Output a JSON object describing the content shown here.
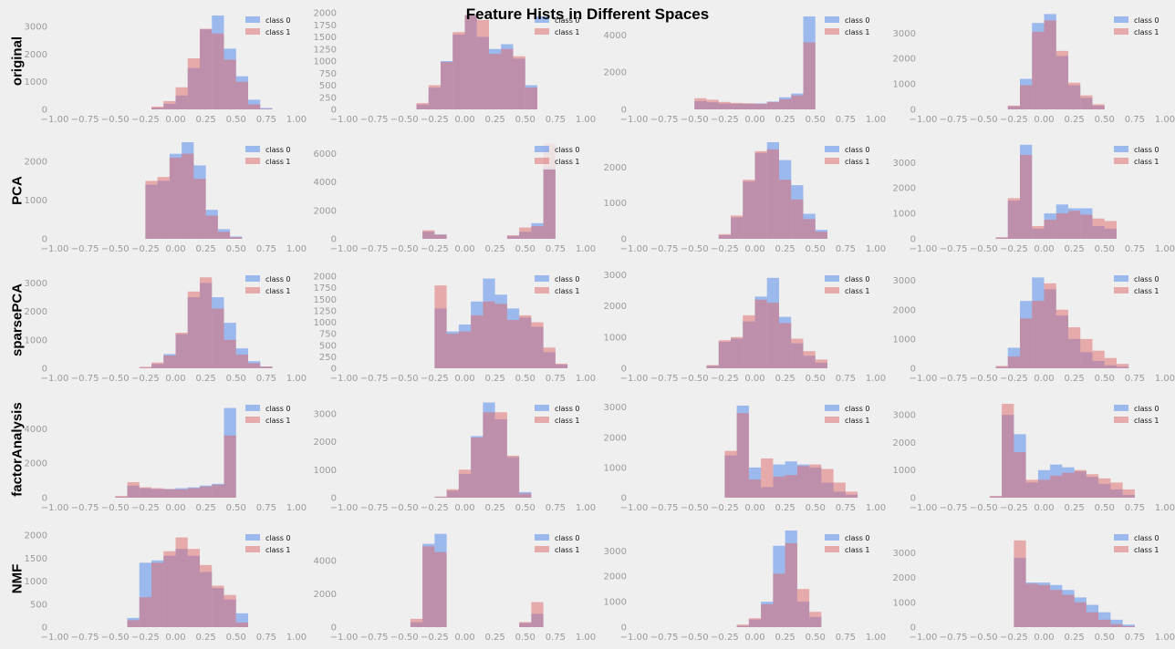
{
  "figure": {
    "title": "Feature Hists in Different Spaces",
    "rows": [
      "original",
      "PCA",
      "sparsePCA",
      "factorAnalysis",
      "NMF"
    ],
    "legend": [
      "class 0",
      "class 1"
    ],
    "colors": {
      "class0": "#6495ed",
      "class1": "#e06666",
      "overlap": "#b9819f",
      "background": "#efefef",
      "tick": "#9a9a9a"
    }
  },
  "chart_data": [
    {
      "type": "bar",
      "row": "original",
      "col": 1,
      "xlim": [
        -1.0,
        1.0
      ],
      "yticks": [
        0,
        1000,
        2000,
        3000
      ],
      "ylim": [
        0,
        3500
      ],
      "bin_edges": [
        -0.3,
        -0.2,
        -0.1,
        0,
        0.1,
        0.2,
        0.3,
        0.4,
        0.5,
        0.6,
        0.7,
        0.8
      ],
      "series": [
        {
          "name": "class 0",
          "values": [
            0,
            60,
            200,
            500,
            1500,
            2900,
            3400,
            2200,
            1200,
            350,
            50
          ]
        },
        {
          "name": "class 1",
          "values": [
            0,
            100,
            300,
            800,
            1850,
            2920,
            2750,
            1800,
            1000,
            180,
            20
          ]
        }
      ]
    },
    {
      "type": "bar",
      "row": "original",
      "col": 2,
      "xlim": [
        -1.0,
        1.0
      ],
      "yticks": [
        0,
        250,
        500,
        750,
        1000,
        1250,
        1500,
        1750,
        2000
      ],
      "ylim": [
        0,
        2000
      ],
      "bin_edges": [
        -0.4,
        -0.3,
        -0.2,
        -0.1,
        0,
        0.1,
        0.2,
        0.3,
        0.4,
        0.5,
        0.6
      ],
      "series": [
        {
          "name": "class 0",
          "values": [
            100,
            450,
            1000,
            1550,
            1950,
            1500,
            1250,
            1350,
            1050,
            500
          ]
        },
        {
          "name": "class 1",
          "values": [
            130,
            500,
            980,
            1600,
            1950,
            1850,
            1150,
            1250,
            1100,
            450
          ]
        }
      ]
    },
    {
      "type": "bar",
      "row": "original",
      "col": 3,
      "xlim": [
        -1.0,
        1.0
      ],
      "yticks": [
        0,
        2000,
        4000
      ],
      "ylim": [
        0,
        5200
      ],
      "bin_edges": [
        -0.5,
        -0.4,
        -0.3,
        -0.2,
        -0.1,
        0,
        0.1,
        0.2,
        0.3,
        0.4,
        0.5
      ],
      "series": [
        {
          "name": "class 0",
          "values": [
            450,
            380,
            320,
            300,
            300,
            320,
            420,
            650,
            850,
            5000
          ]
        },
        {
          "name": "class 1",
          "values": [
            600,
            520,
            400,
            350,
            330,
            300,
            400,
            550,
            750,
            3600
          ]
        }
      ]
    },
    {
      "type": "bar",
      "row": "original",
      "col": 4,
      "xlim": [
        -1.0,
        1.0
      ],
      "yticks": [
        0,
        1000,
        2000,
        3000
      ],
      "ylim": [
        0,
        3800
      ],
      "bin_edges": [
        -0.3,
        -0.2,
        -0.1,
        0,
        0.1,
        0.2,
        0.3,
        0.4,
        0.5
      ],
      "series": [
        {
          "name": "class 0",
          "values": [
            120,
            1200,
            3400,
            3750,
            2100,
            950,
            450,
            150
          ]
        },
        {
          "name": "class 1",
          "values": [
            150,
            950,
            3050,
            3500,
            2300,
            1050,
            550,
            200
          ]
        }
      ]
    },
    {
      "type": "bar",
      "row": "PCA",
      "col": 1,
      "xlim": [
        -1.0,
        1.0
      ],
      "yticks": [
        0,
        1000,
        2000
      ],
      "ylim": [
        0,
        2500
      ],
      "bin_edges": [
        -0.25,
        -0.15,
        -0.05,
        0.05,
        0.15,
        0.25,
        0.35,
        0.45,
        0.55
      ],
      "series": [
        {
          "name": "class 0",
          "values": [
            1400,
            1500,
            2200,
            2500,
            1900,
            750,
            250,
            60
          ]
        },
        {
          "name": "class 1",
          "values": [
            1500,
            1600,
            2100,
            2200,
            1550,
            600,
            180,
            40
          ]
        }
      ]
    },
    {
      "type": "bar",
      "row": "PCA",
      "col": 2,
      "xlim": [
        -1.0,
        1.0
      ],
      "yticks": [
        0,
        2000,
        4000,
        6000
      ],
      "ylim": [
        0,
        6800
      ],
      "bin_edges": [
        -0.35,
        -0.25,
        -0.15,
        -0.05,
        0.05,
        0.15,
        0.25,
        0.35,
        0.45,
        0.55,
        0.65,
        0.75
      ],
      "series": [
        {
          "name": "class 0",
          "values": [
            500,
            300,
            0,
            0,
            0,
            0,
            0,
            200,
            500,
            1100,
            5000,
            2700
          ]
        },
        {
          "name": "class 1",
          "values": [
            600,
            300,
            0,
            0,
            0,
            0,
            0,
            250,
            800,
            900,
            6700,
            1300
          ]
        }
      ]
    },
    {
      "type": "bar",
      "row": "PCA",
      "col": 3,
      "xlim": [
        -1.0,
        1.0
      ],
      "yticks": [
        0,
        1000,
        2000
      ],
      "ylim": [
        0,
        2700
      ],
      "bin_edges": [
        -0.3,
        -0.2,
        -0.1,
        0,
        0.1,
        0.2,
        0.3,
        0.4,
        0.5,
        0.6
      ],
      "series": [
        {
          "name": "class 0",
          "values": [
            100,
            600,
            1600,
            2400,
            2700,
            2200,
            1500,
            700,
            250
          ]
        },
        {
          "name": "class 1",
          "values": [
            130,
            650,
            1650,
            2450,
            2500,
            1650,
            1100,
            550,
            200
          ]
        }
      ]
    },
    {
      "type": "bar",
      "row": "PCA",
      "col": 4,
      "xlim": [
        -1.0,
        1.0
      ],
      "yticks": [
        0,
        1000,
        2000,
        3000
      ],
      "ylim": [
        0,
        3800
      ],
      "bin_edges": [
        -0.4,
        -0.3,
        -0.2,
        -0.1,
        0,
        0.1,
        0.2,
        0.3,
        0.4,
        0.5,
        0.6
      ],
      "series": [
        {
          "name": "class 0",
          "values": [
            50,
            1500,
            3700,
            400,
            1000,
            1350,
            1200,
            1200,
            500,
            400,
            250
          ]
        },
        {
          "name": "class 1",
          "values": [
            60,
            1600,
            3300,
            500,
            750,
            1000,
            1100,
            950,
            800,
            700,
            500
          ]
        }
      ]
    },
    {
      "type": "bar",
      "row": "sparsePCA",
      "col": 1,
      "xlim": [
        -1.0,
        1.0
      ],
      "yticks": [
        0,
        1000,
        2000,
        3000
      ],
      "ylim": [
        0,
        3400
      ],
      "bin_edges": [
        -0.3,
        -0.2,
        -0.1,
        0,
        0.1,
        0.2,
        0.3,
        0.4,
        0.5,
        0.6,
        0.7,
        0.8
      ],
      "series": [
        {
          "name": "class 0",
          "values": [
            20,
            150,
            500,
            1200,
            2500,
            3000,
            2500,
            1600,
            700,
            250,
            60
          ]
        },
        {
          "name": "class 1",
          "values": [
            50,
            200,
            450,
            1250,
            2700,
            3200,
            2100,
            1000,
            480,
            180,
            60
          ]
        }
      ]
    },
    {
      "type": "bar",
      "row": "sparsePCA",
      "col": 2,
      "xlim": [
        -1.0,
        1.0
      ],
      "yticks": [
        0,
        250,
        500,
        750,
        1000,
        1250,
        1500,
        1750,
        2000
      ],
      "ylim": [
        0,
        2100
      ],
      "bin_edges": [
        -0.25,
        -0.15,
        -0.05,
        0.05,
        0.15,
        0.25,
        0.35,
        0.45,
        0.55,
        0.65,
        0.75,
        0.85
      ],
      "series": [
        {
          "name": "class 0",
          "values": [
            1300,
            800,
            950,
            1450,
            1950,
            1600,
            1300,
            1100,
            900,
            350,
            80
          ]
        },
        {
          "name": "class 1",
          "values": [
            1800,
            750,
            800,
            1150,
            1450,
            1400,
            1050,
            1150,
            1000,
            450,
            100
          ]
        }
      ]
    },
    {
      "type": "bar",
      "row": "sparsePCA",
      "col": 3,
      "xlim": [
        -1.0,
        1.0
      ],
      "yticks": [
        0,
        1000,
        2000,
        3000
      ],
      "ylim": [
        0,
        3100
      ],
      "bin_edges": [
        -0.4,
        -0.3,
        -0.2,
        -0.1,
        0,
        0.1,
        0.2,
        0.3,
        0.4,
        0.5,
        0.6
      ],
      "series": [
        {
          "name": "class 0",
          "values": [
            80,
            850,
            950,
            1500,
            2300,
            2900,
            1650,
            800,
            400,
            180
          ]
        },
        {
          "name": "class 1",
          "values": [
            100,
            900,
            1000,
            1700,
            2200,
            2100,
            1450,
            950,
            550,
            280
          ]
        }
      ]
    },
    {
      "type": "bar",
      "row": "sparsePCA",
      "col": 4,
      "xlim": [
        -1.0,
        1.0
      ],
      "yticks": [
        0,
        1000,
        2000,
        3000
      ],
      "ylim": [
        0,
        3300
      ],
      "bin_edges": [
        -0.4,
        -0.3,
        -0.2,
        -0.1,
        0,
        0.1,
        0.2,
        0.3,
        0.4,
        0.5,
        0.6,
        0.7
      ],
      "series": [
        {
          "name": "class 0",
          "values": [
            50,
            700,
            2300,
            3100,
            2700,
            1800,
            1000,
            550,
            250,
            100,
            50
          ]
        },
        {
          "name": "class 1",
          "values": [
            80,
            400,
            1700,
            2300,
            2900,
            2000,
            1400,
            1000,
            600,
            350,
            150
          ]
        }
      ]
    },
    {
      "type": "bar",
      "row": "factorAnalysis",
      "col": 1,
      "xlim": [
        -1.0,
        1.0
      ],
      "yticks": [
        0,
        2000,
        4000
      ],
      "ylim": [
        0,
        5600
      ],
      "bin_edges": [
        -0.5,
        -0.4,
        -0.3,
        -0.2,
        -0.1,
        0,
        0.1,
        0.2,
        0.3,
        0.4,
        0.5
      ],
      "series": [
        {
          "name": "class 0",
          "values": [
            50,
            700,
            550,
            500,
            500,
            550,
            600,
            700,
            800,
            5200
          ]
        },
        {
          "name": "class 1",
          "values": [
            100,
            900,
            600,
            550,
            500,
            480,
            550,
            650,
            750,
            3600
          ]
        }
      ]
    },
    {
      "type": "bar",
      "row": "factorAnalysis",
      "col": 2,
      "xlim": [
        -1.0,
        1.0
      ],
      "yticks": [
        0,
        1000,
        2000,
        3000
      ],
      "ylim": [
        0,
        3450
      ],
      "bin_edges": [
        -0.25,
        -0.15,
        -0.05,
        0.05,
        0.15,
        0.25,
        0.35,
        0.45,
        0.55
      ],
      "series": [
        {
          "name": "class 0",
          "values": [
            30,
            250,
            850,
            2200,
            3400,
            2800,
            1450,
            200
          ]
        },
        {
          "name": "class 1",
          "values": [
            40,
            300,
            1000,
            2150,
            3050,
            3050,
            1500,
            150
          ]
        }
      ]
    },
    {
      "type": "bar",
      "row": "factorAnalysis",
      "col": 3,
      "xlim": [
        -1.0,
        1.0
      ],
      "yticks": [
        0,
        1000,
        2000,
        3000
      ],
      "ylim": [
        0,
        3200
      ],
      "bin_edges": [
        -0.25,
        -0.15,
        -0.05,
        0.05,
        0.15,
        0.25,
        0.35,
        0.45,
        0.55,
        0.65,
        0.75,
        0.85
      ],
      "series": [
        {
          "name": "class 0",
          "values": [
            1400,
            3050,
            1000,
            350,
            1100,
            1200,
            1100,
            1000,
            500,
            200,
            100
          ]
        },
        {
          "name": "class 1",
          "values": [
            1550,
            2800,
            600,
            1300,
            700,
            750,
            1050,
            1100,
            950,
            500,
            200
          ]
        }
      ]
    },
    {
      "type": "bar",
      "row": "factorAnalysis",
      "col": 4,
      "xlim": [
        -1.0,
        1.0
      ],
      "yticks": [
        0,
        1000,
        2000,
        3000
      ],
      "ylim": [
        0,
        3500
      ],
      "bin_edges": [
        -0.45,
        -0.35,
        -0.25,
        -0.15,
        -0.05,
        0.05,
        0.15,
        0.25,
        0.35,
        0.45,
        0.55,
        0.65,
        0.75
      ],
      "series": [
        {
          "name": "class 0",
          "values": [
            50,
            3000,
            2300,
            550,
            1000,
            1200,
            1100,
            950,
            750,
            500,
            300,
            100
          ]
        },
        {
          "name": "class 1",
          "values": [
            60,
            3400,
            1650,
            650,
            650,
            800,
            900,
            1000,
            850,
            700,
            550,
            300
          ]
        }
      ]
    },
    {
      "type": "bar",
      "row": "NMF",
      "col": 1,
      "xlim": [
        -1.0,
        1.0
      ],
      "yticks": [
        0,
        500,
        1000,
        1500,
        2000
      ],
      "ylim": [
        0,
        2100
      ],
      "bin_edges": [
        -0.4,
        -0.3,
        -0.2,
        -0.1,
        0,
        0.1,
        0.2,
        0.3,
        0.4,
        0.5,
        0.6
      ],
      "series": [
        {
          "name": "class 0",
          "values": [
            200,
            1400,
            1450,
            1550,
            1700,
            1550,
            1200,
            850,
            600,
            300
          ]
        },
        {
          "name": "class 1",
          "values": [
            150,
            650,
            1400,
            1650,
            1950,
            1700,
            1350,
            900,
            700,
            100
          ]
        }
      ]
    },
    {
      "type": "bar",
      "row": "NMF",
      "col": 2,
      "xlim": [
        -1.0,
        1.0
      ],
      "yticks": [
        0,
        2000,
        4000
      ],
      "ylim": [
        0,
        5800
      ],
      "bin_edges": [
        -0.45,
        -0.35,
        -0.25,
        -0.15,
        -0.05,
        0.05,
        0.15,
        0.25,
        0.35,
        0.45,
        0.55,
        0.65
      ],
      "series": [
        {
          "name": "class 0",
          "values": [
            300,
            5000,
            5600,
            0,
            0,
            0,
            0,
            0,
            0,
            250,
            800
          ]
        },
        {
          "name": "class 1",
          "values": [
            500,
            4850,
            4500,
            0,
            0,
            0,
            0,
            0,
            0,
            300,
            1500
          ]
        }
      ]
    },
    {
      "type": "bar",
      "row": "NMF",
      "col": 3,
      "xlim": [
        -1.0,
        1.0
      ],
      "yticks": [
        0,
        1000,
        2000,
        3000
      ],
      "ylim": [
        0,
        3800
      ],
      "bin_edges": [
        -0.15,
        -0.05,
        0.05,
        0.15,
        0.25,
        0.35,
        0.45,
        0.55
      ],
      "series": [
        {
          "name": "class 0",
          "values": [
            50,
            300,
            1000,
            3200,
            3800,
            1000,
            400
          ]
        },
        {
          "name": "class 1",
          "values": [
            100,
            350,
            900,
            2100,
            3300,
            1500,
            600
          ]
        }
      ]
    },
    {
      "type": "bar",
      "row": "NMF",
      "col": 4,
      "xlim": [
        -1.0,
        1.0
      ],
      "yticks": [
        0,
        1000,
        2000,
        3000
      ],
      "ylim": [
        0,
        3900
      ],
      "bin_edges": [
        -0.25,
        -0.15,
        -0.05,
        0.05,
        0.15,
        0.25,
        0.35,
        0.45,
        0.55,
        0.65,
        0.75
      ],
      "series": [
        {
          "name": "class 0",
          "values": [
            2800,
            1800,
            1800,
            1700,
            1500,
            1200,
            900,
            600,
            300,
            100
          ]
        },
        {
          "name": "class 1",
          "values": [
            3500,
            1750,
            1700,
            1500,
            1300,
            1000,
            600,
            300,
            120,
            40
          ]
        }
      ]
    }
  ]
}
